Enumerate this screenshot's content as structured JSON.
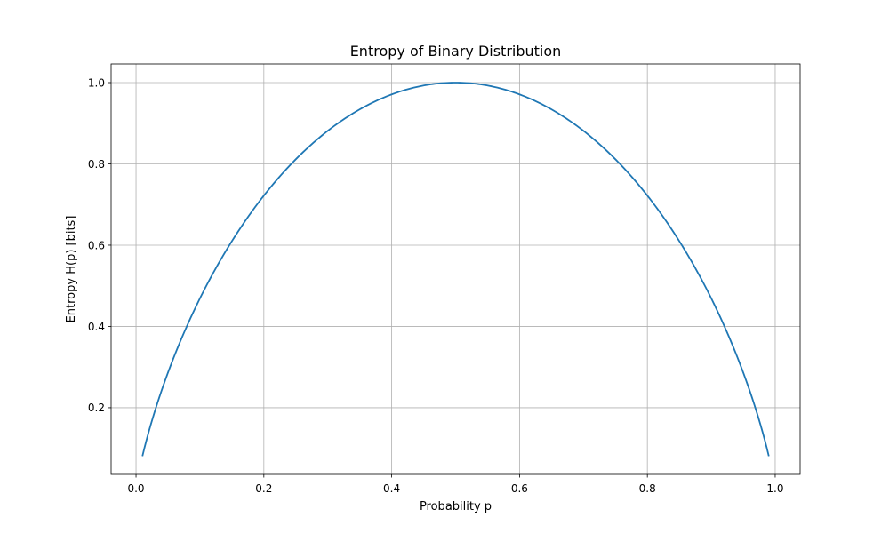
{
  "chart_data": {
    "type": "line",
    "title": "Entropy of Binary Distribution",
    "xlabel": "Probability p",
    "ylabel": "Entropy H(p) [bits]",
    "xlim": [
      -0.039,
      1.039
    ],
    "ylim": [
      0.0359,
      1.0459
    ],
    "xticks": [
      0.0,
      0.2,
      0.4,
      0.6,
      0.8,
      1.0
    ],
    "xtick_labels": [
      "0.0",
      "0.2",
      "0.4",
      "0.6",
      "0.8",
      "1.0"
    ],
    "yticks": [
      0.2,
      0.4,
      0.6,
      0.8,
      1.0
    ],
    "ytick_labels": [
      "0.2",
      "0.4",
      "0.6",
      "0.8",
      "1.0"
    ],
    "grid": true,
    "legend": "none",
    "series": [
      {
        "color": "#1f77b4",
        "x": [
          0.01,
          0.02,
          0.03,
          0.05,
          0.07,
          0.1,
          0.15,
          0.2,
          0.25,
          0.3,
          0.35,
          0.4,
          0.45,
          0.5,
          0.55,
          0.6,
          0.65,
          0.7,
          0.75,
          0.8,
          0.85,
          0.9,
          0.93,
          0.95,
          0.97,
          0.98,
          0.99
        ],
        "y": [
          0.081,
          0.141,
          0.194,
          0.286,
          0.366,
          0.469,
          0.61,
          0.722,
          0.811,
          0.881,
          0.934,
          0.971,
          0.993,
          1.0,
          0.993,
          0.971,
          0.934,
          0.881,
          0.811,
          0.722,
          0.61,
          0.469,
          0.366,
          0.286,
          0.194,
          0.141,
          0.081
        ]
      }
    ]
  }
}
